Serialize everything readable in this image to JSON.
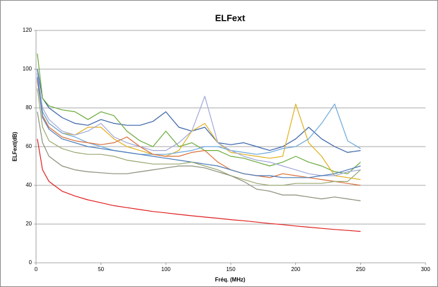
{
  "chart_data": {
    "type": "line",
    "title": "ELFext",
    "x_label": "Fréq. (MHz)",
    "y_label": "ELFext(dB)",
    "xlim": [
      0,
      300
    ],
    "xticks": [
      0,
      50,
      100,
      150,
      200,
      250,
      300
    ],
    "ylim": [
      0,
      120
    ],
    "yticks": [
      0,
      20,
      40,
      60,
      80,
      100,
      120
    ],
    "grid": true,
    "x": [
      1,
      5,
      10,
      20,
      30,
      40,
      50,
      60,
      70,
      80,
      90,
      100,
      110,
      120,
      130,
      140,
      150,
      160,
      170,
      180,
      190,
      200,
      210,
      220,
      230,
      240,
      250
    ],
    "series": [
      {
        "color": "#3a63a8",
        "values": [
          100,
          85,
          80,
          75,
          72,
          71,
          74,
          72,
          71,
          71,
          73,
          78,
          70,
          68,
          70,
          62,
          61,
          62,
          60,
          58,
          60,
          64,
          70,
          64,
          60,
          57,
          58
        ]
      },
      {
        "color": "#6aaa3a",
        "values": [
          108,
          85,
          81,
          79,
          78,
          74,
          78,
          76,
          68,
          63,
          60,
          68,
          60,
          62,
          58,
          58,
          55,
          54,
          52,
          50,
          52,
          55,
          52,
          50,
          47,
          46,
          52
        ]
      },
      {
        "color": "#e0b020",
        "values": [
          95,
          78,
          72,
          67,
          66,
          70,
          70,
          64,
          60,
          58,
          56,
          55,
          58,
          68,
          72,
          62,
          57,
          56,
          55,
          54,
          55,
          82,
          62,
          55,
          45,
          44,
          43
        ]
      },
      {
        "color": "#6aa8dc",
        "values": [
          95,
          78,
          72,
          67,
          65,
          62,
          60,
          58,
          57,
          56,
          56,
          56,
          57,
          58,
          60,
          60,
          58,
          57,
          56,
          57,
          59,
          60,
          64,
          72,
          82,
          63,
          59
        ]
      },
      {
        "color": "#a0a8d8",
        "values": [
          98,
          80,
          74,
          68,
          66,
          68,
          72,
          65,
          62,
          60,
          58,
          58,
          62,
          68,
          86,
          62,
          58,
          55,
          53,
          52,
          50,
          48,
          46,
          45,
          45,
          47,
          48
        ]
      },
      {
        "color": "#d8703a",
        "values": [
          94,
          76,
          70,
          65,
          63,
          62,
          61,
          62,
          65,
          60,
          56,
          55,
          55,
          57,
          58,
          52,
          48,
          46,
          45,
          44,
          46,
          45,
          44,
          43,
          42,
          41,
          40
        ]
      },
      {
        "color": "#4a7ab8",
        "values": [
          96,
          75,
          69,
          64,
          62,
          60,
          59,
          58,
          57,
          56,
          55,
          54,
          53,
          52,
          51,
          50,
          48,
          46,
          45,
          45,
          44,
          44,
          44,
          45,
          46,
          48,
          50
        ]
      },
      {
        "color": "#98a870",
        "values": [
          90,
          70,
          63,
          59,
          57,
          56,
          56,
          55,
          53,
          52,
          51,
          51,
          51,
          52,
          50,
          48,
          45,
          43,
          41,
          40,
          40,
          41,
          41,
          41,
          42,
          42,
          48
        ]
      },
      {
        "color": "#8a8f7a",
        "values": [
          78,
          62,
          55,
          50,
          48,
          47,
          46.5,
          46,
          46,
          47,
          48,
          49,
          50,
          50,
          49,
          47,
          45,
          42,
          38,
          37,
          35,
          35,
          34,
          33,
          34,
          33,
          32
        ]
      },
      {
        "color": "#e02020",
        "values": [
          64,
          48,
          42,
          37,
          34.5,
          32.5,
          31,
          29.5,
          28.5,
          27.5,
          26.5,
          25.8,
          25,
          24.3,
          23.6,
          23,
          22.3,
          21.7,
          21,
          20.3,
          19.7,
          19,
          18.4,
          17.8,
          17.2,
          16.7,
          16.2
        ]
      }
    ]
  }
}
